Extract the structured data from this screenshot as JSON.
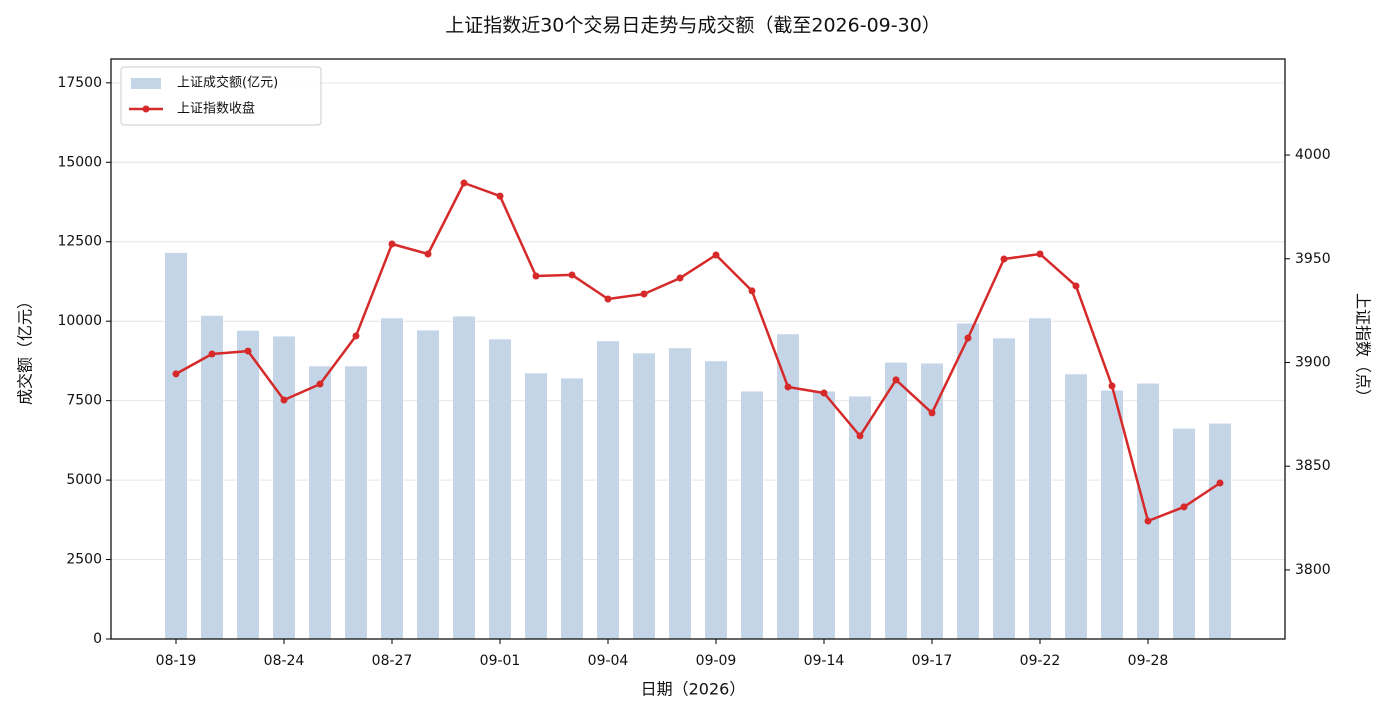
{
  "chart_data": {
    "type": "combo",
    "title": "上证指数近30个交易日走势与成交额（截至2026-09-30）",
    "x_label": "日期（2026）",
    "y_label": "成交额（亿元）",
    "y2_label": "上证指数（点）",
    "categories": [
      "08-19",
      null,
      null,
      "08-24",
      null,
      null,
      "08-27",
      null,
      null,
      "09-01",
      null,
      null,
      "09-04",
      null,
      null,
      "09-09",
      null,
      null,
      "09-14",
      null,
      null,
      "09-17",
      null,
      null,
      "09-22",
      null,
      null,
      "09-28",
      null,
      null
    ],
    "series": [
      {
        "name": "上证成交额(亿元)",
        "type": "bar",
        "axis": "y",
        "color": "#c5d5e8",
        "values": [
          12150,
          10170,
          9700,
          9520,
          8580,
          8580,
          10090,
          9710,
          10150,
          9430,
          8360,
          8200,
          9370,
          8990,
          9150,
          8740,
          7790,
          9590,
          7790,
          7630,
          8700,
          8670,
          9930,
          9460,
          10090,
          8330,
          7820,
          8040,
          6620,
          6780
        ]
      },
      {
        "name": "上证指数收盘",
        "type": "line",
        "axis": "y2",
        "color": "#d62a2a",
        "values": [
          3894.5,
          3904.1,
          3905.5,
          3881.9,
          3889.6,
          3912.8,
          3957.1,
          3952.3,
          3986.5,
          3980.2,
          3941.7,
          3942.2,
          3930.6,
          3933.0,
          3940.7,
          3951.8,
          3934.5,
          3888.2,
          3885.3,
          3864.6,
          3891.6,
          3875.7,
          3911.8,
          3949.9,
          3952.3,
          3936.9,
          3888.7,
          3823.6,
          3830.4,
          3841.9
        ]
      }
    ],
    "ylim": [
      0,
      18250
    ],
    "yticks": [
      0,
      2500,
      5000,
      7500,
      10000,
      12500,
      15000,
      17500
    ],
    "y2lim": [
      3766.7,
      4046.3
    ],
    "y2ticks": [
      3800,
      3850,
      3900,
      3950,
      4000
    ],
    "grid": true,
    "legend": "upper left"
  }
}
